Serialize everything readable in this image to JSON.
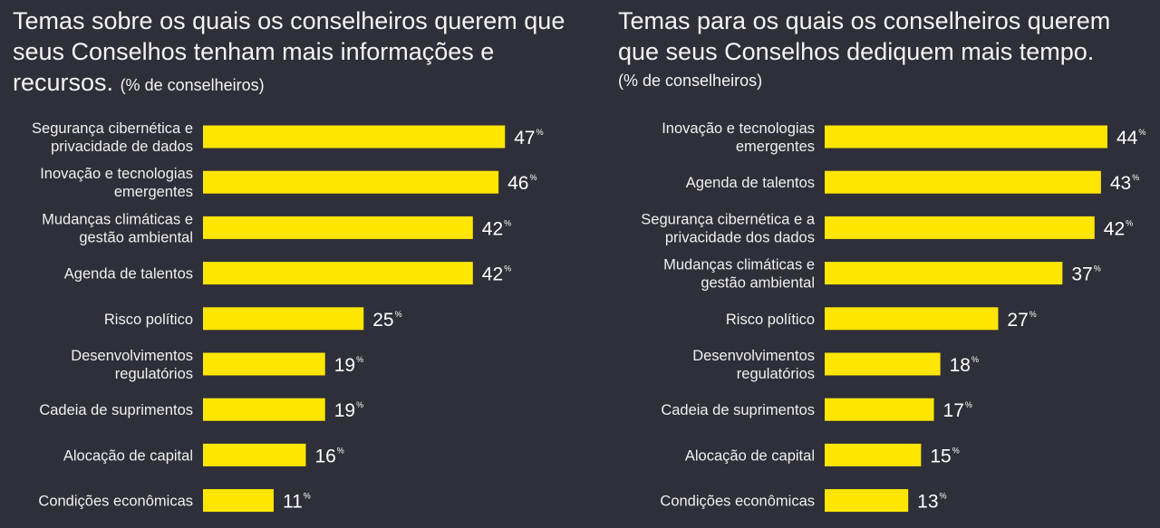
{
  "colors": {
    "background": "#2e2f38",
    "bar": "#ffe600",
    "text": "#ffffff"
  },
  "chart_data": [
    {
      "type": "bar",
      "orientation": "horizontal",
      "title": "Temas sobre os quais os conselheiros querem que seus Conselhos tenham mais informações e recursos.",
      "unit_label": "(% de conselheiros)",
      "categories": [
        [
          "Segurança cibernética e",
          "privacidade de dados"
        ],
        [
          "Inovação e tecnologias",
          "emergentes"
        ],
        [
          "Mudanças climáticas e",
          "gestão ambiental"
        ],
        [
          "Agenda de talentos"
        ],
        [
          "Risco político"
        ],
        [
          "Desenvolvimentos",
          "regulatórios"
        ],
        [
          "Cadeia de suprimentos"
        ],
        [
          "Alocação de capital"
        ],
        [
          "Condições econômicas"
        ]
      ],
      "values": [
        47,
        46,
        42,
        42,
        25,
        19,
        19,
        16,
        11
      ],
      "value_suffix": "%",
      "xlim": [
        0,
        50
      ]
    },
    {
      "type": "bar",
      "orientation": "horizontal",
      "title": "Temas para os quais os conselheiros querem que seus Conselhos dediquem mais tempo.",
      "unit_label": "(% de conselheiros)",
      "categories": [
        [
          "Inovação e tecnologias",
          "emergentes"
        ],
        [
          "Agenda de talentos"
        ],
        [
          "Segurança cibernética e a",
          "privacidade dos dados"
        ],
        [
          "Mudanças climáticas e",
          "gestão ambiental"
        ],
        [
          "Risco político"
        ],
        [
          "Desenvolvimentos",
          "regulatórios"
        ],
        [
          "Cadeia de suprimentos"
        ],
        [
          "Alocação de capital"
        ],
        [
          "Condições econômicas"
        ]
      ],
      "values": [
        44,
        43,
        42,
        37,
        27,
        18,
        17,
        15,
        13
      ],
      "value_suffix": "%",
      "xlim": [
        0,
        50
      ]
    }
  ]
}
